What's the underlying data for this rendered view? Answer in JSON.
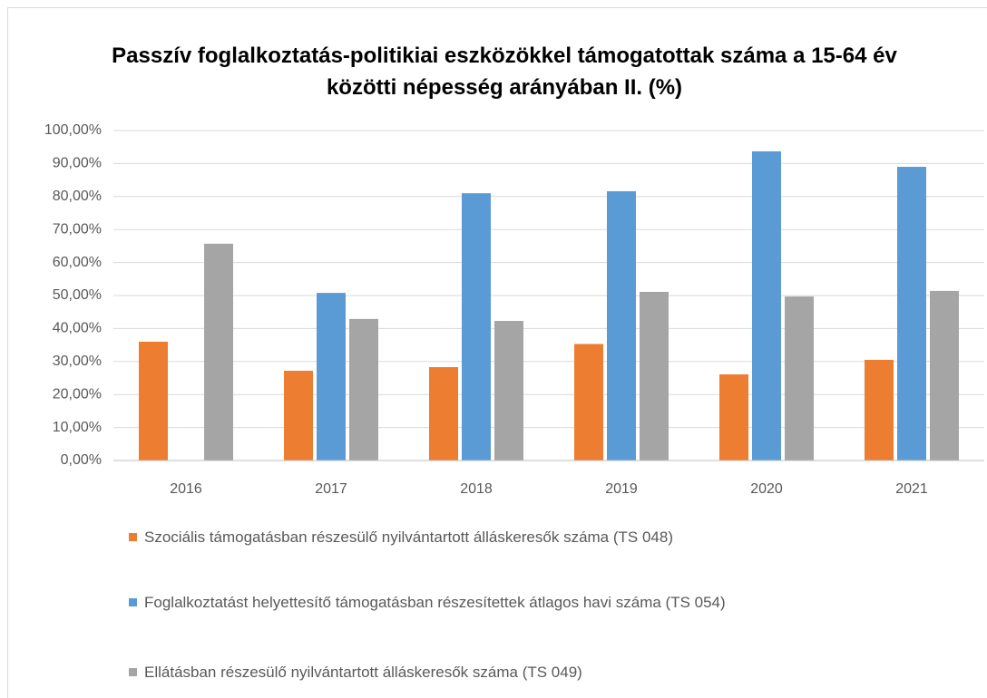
{
  "chart_data": {
    "type": "bar",
    "title": "Passzív foglalkoztatás-politikiai eszközökkel támogatottak száma a 15-64 év közötti népesség  arányában II. (%)",
    "categories": [
      "2016",
      "2017",
      "2018",
      "2019",
      "2020",
      "2021"
    ],
    "series": [
      {
        "name": "Szociális támogatásban részesülő nyilvántartott álláskeresők száma (TS 048)",
        "color": "#ed7d31",
        "values": [
          36.0,
          27.2,
          28.3,
          35.3,
          26.1,
          30.5
        ]
      },
      {
        "name": "Foglalkoztatást helyettesítő támogatásban részesítettek átlagos havi száma (TS 054)",
        "color": "#5b9bd5",
        "values": [
          null,
          50.8,
          81.0,
          81.6,
          93.7,
          89.0
        ]
      },
      {
        "name": "Ellátásban részesülő nyilvántartott álláskeresők száma (TS 049)",
        "color": "#a5a5a5",
        "values": [
          65.7,
          42.9,
          42.3,
          51.1,
          49.7,
          51.4
        ]
      }
    ],
    "ylim": [
      0,
      100
    ],
    "yticks": [
      {
        "value": 0,
        "label": "0,00%"
      },
      {
        "value": 10,
        "label": "10,00%"
      },
      {
        "value": 20,
        "label": "20,00%"
      },
      {
        "value": 30,
        "label": "30,00%"
      },
      {
        "value": 40,
        "label": "40,00%"
      },
      {
        "value": 50,
        "label": "50,00%"
      },
      {
        "value": 60,
        "label": "60,00%"
      },
      {
        "value": 70,
        "label": "70,00%"
      },
      {
        "value": 80,
        "label": "80,00%"
      },
      {
        "value": 90,
        "label": "90,00%"
      },
      {
        "value": 100,
        "label": "100,00%"
      }
    ],
    "grid": true,
    "legend": "bottom"
  }
}
